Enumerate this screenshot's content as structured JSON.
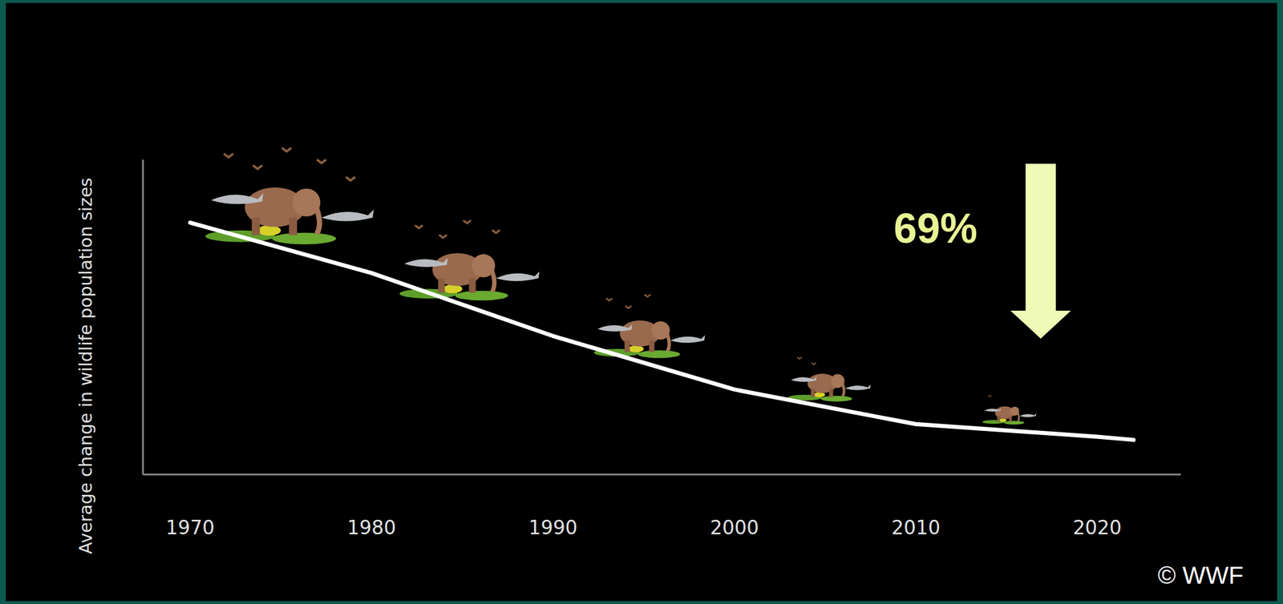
{
  "chart_data": {
    "type": "line",
    "y_label": "Average change in wildlife population sizes",
    "x": [
      1970,
      1980,
      1990,
      2000,
      2010,
      2020,
      2022
    ],
    "values": [
      100,
      84,
      64,
      47,
      36,
      32,
      31
    ],
    "color": "#ffffff",
    "xlim": [
      1967.4,
      2024.6
    ],
    "xticks": [
      1970,
      1980,
      1990,
      2000,
      2010,
      2020
    ],
    "ylim": [
      20,
      120
    ],
    "tick_labels": "x",
    "grid": false,
    "annotation": "69%",
    "credit": "© WWF"
  }
}
